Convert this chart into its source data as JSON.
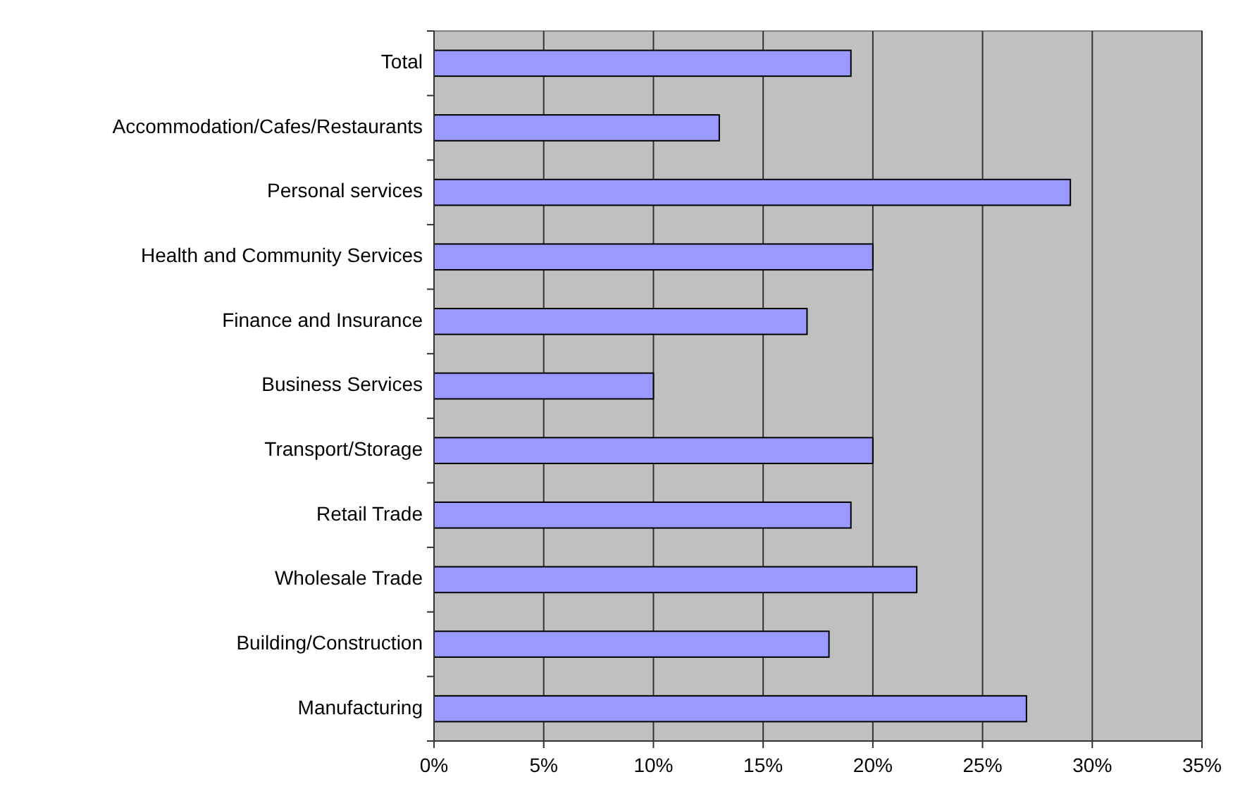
{
  "chart_data": {
    "type": "bar",
    "orientation": "horizontal",
    "categories": [
      "Total",
      "Accommodation/Cafes/Restaurants",
      "Personal services",
      "Health and Community Services",
      "Finance and Insurance",
      "Business Services",
      "Transport/Storage",
      "Retail Trade",
      "Wholesale Trade",
      "Building/Construction",
      "Manufacturing"
    ],
    "values": [
      19,
      13,
      29,
      20,
      17,
      10,
      20,
      19,
      22,
      18,
      27
    ],
    "color": "#9999ff",
    "xlim": [
      0,
      35
    ],
    "xticks": [
      {
        "value": 0,
        "label": "0%"
      },
      {
        "value": 5,
        "label": "5%"
      },
      {
        "value": 10,
        "label": "10%"
      },
      {
        "value": 15,
        "label": "15%"
      },
      {
        "value": 20,
        "label": "20%"
      },
      {
        "value": 25,
        "label": "25%"
      },
      {
        "value": 30,
        "label": "30%"
      },
      {
        "value": 35,
        "label": "35%"
      }
    ],
    "grid": "x"
  }
}
